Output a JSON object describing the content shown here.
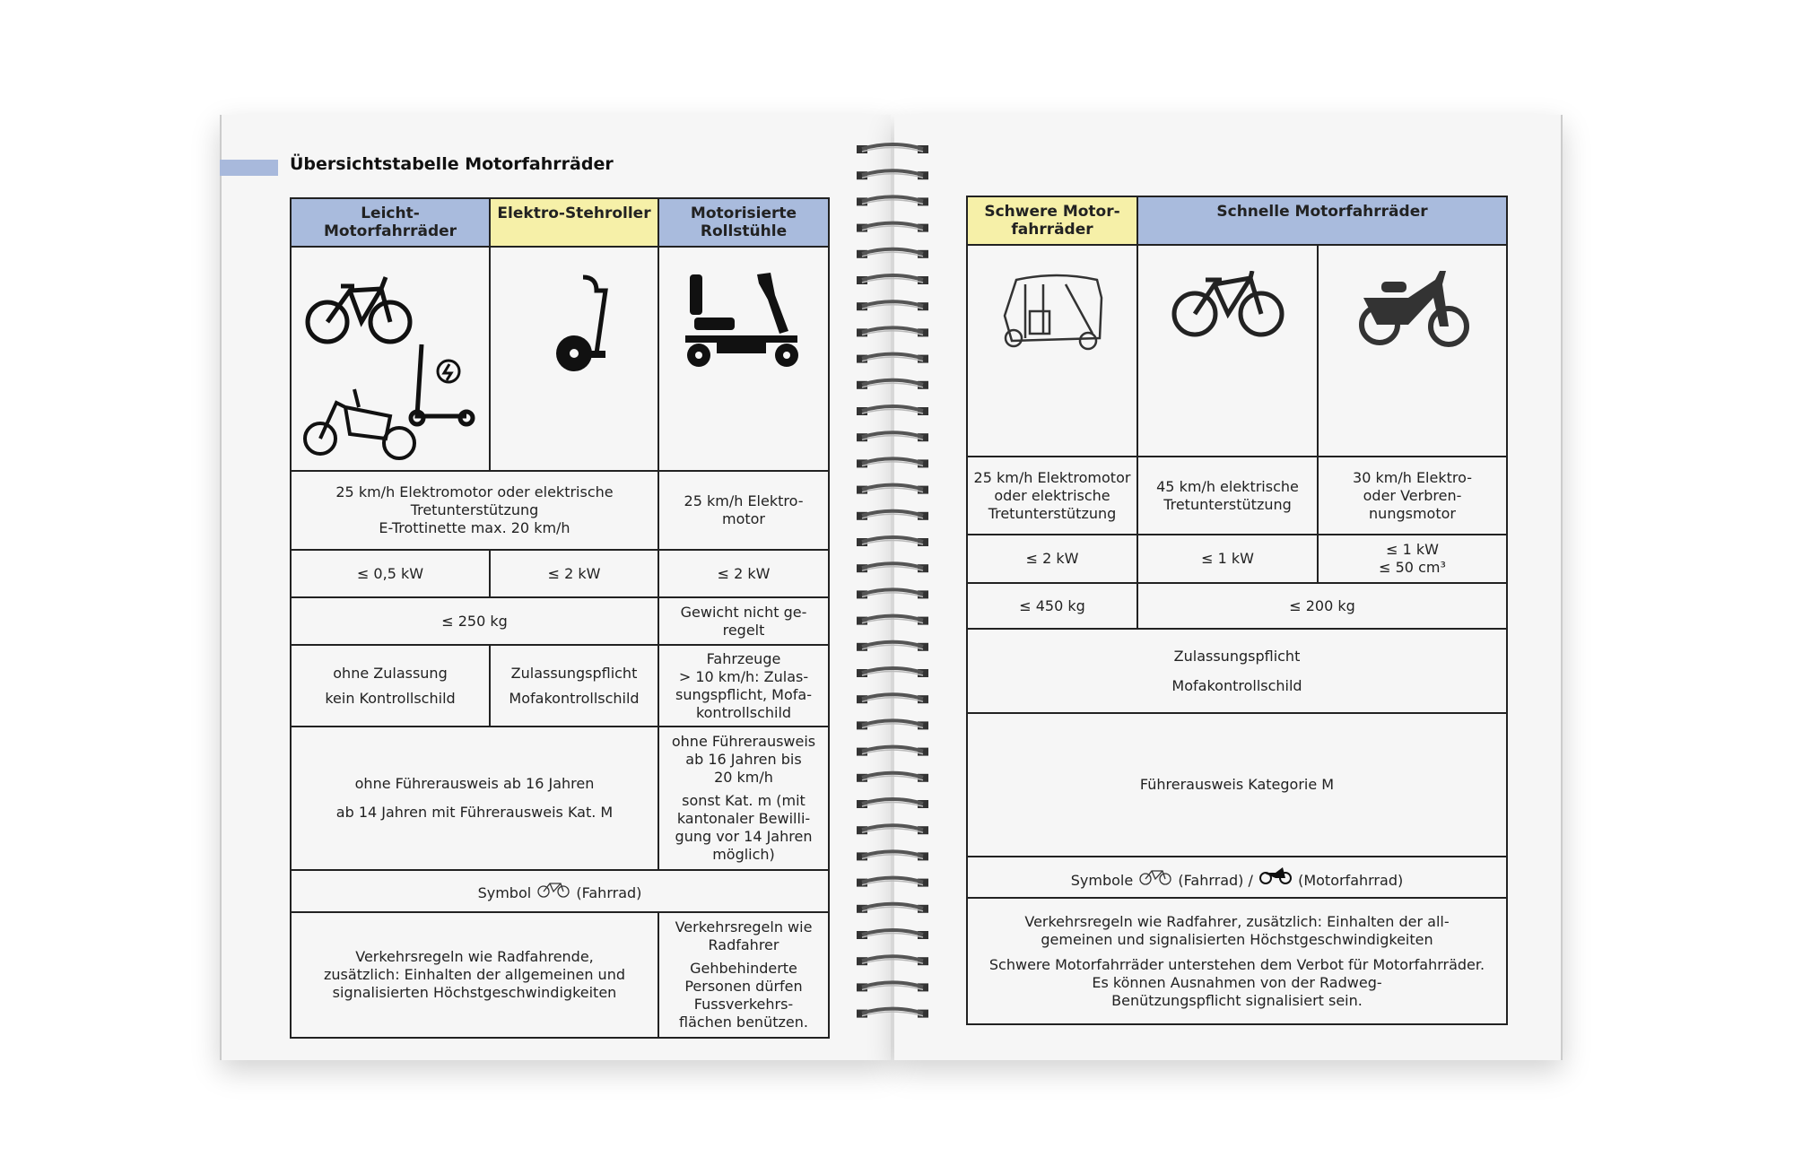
{
  "title": "Übersichtstabelle Motorfahrräder",
  "colors": {
    "header_blue": "#a9bbdd",
    "header_yellow": "#f6f0a8",
    "title_bar": "#a8b9dc"
  },
  "left": {
    "headers": [
      "Leicht-Motorfahrräder",
      "Elektro-Stehroller",
      "Motorisierte\nRollstühle"
    ],
    "icons": [
      "e-bike-icon",
      "e-scooter-icon",
      "cargo-bike-icon",
      "standing-scooter-icon",
      "mobility-scooter-icon"
    ],
    "speed": [
      "25 km/h Elektromotor oder elektrische\nTretunterstützung\nE-Trottinette max. 20 km/h",
      "25 km/h Elektro-\nmotor"
    ],
    "power": [
      "≤ 0,5 kW",
      "≤ 2 kW",
      "≤ 2 kW"
    ],
    "weight": [
      "≤ 250 kg",
      "Gewicht nicht ge-\nregelt"
    ],
    "registration": [
      [
        "ohne Zulassung",
        "kein Kontrollschild"
      ],
      [
        "Zulassungspflicht",
        "Mofakontrollschild"
      ],
      "Fahrzeuge\n> 10 km/h: Zulas-\nsungspflicht, Mofa-\nkontrollschild"
    ],
    "license": [
      [
        "ohne Führerausweis ab 16 Jahren",
        "ab 14 Jahren mit Führerausweis Kat. M"
      ],
      [
        "ohne Führerausweis\nab 16 Jahren bis\n20 km/h",
        "sonst Kat. m (mit\nkantonaler Bewilli-\ngung vor 14 Jahren\nmöglich)"
      ]
    ],
    "symbol": {
      "prefix": "Symbol",
      "suffix": "(Fahrrad)"
    },
    "rules": [
      "Verkehrsregeln wie Radfahrende,\nzusätzlich: Einhalten der allgemeinen und\nsignalisierten Höchstgeschwindigkeiten",
      [
        "Verkehrsregeln wie\nRadfahrer",
        "Gehbehinderte\nPersonen dürfen\nFussverkehrs-\nflächen benützen."
      ]
    ]
  },
  "right": {
    "headers": [
      "Schwere Motor-\nfahrräder",
      "Schnelle Motorfahrräder"
    ],
    "icons": [
      "tuk-tuk-icon",
      "s-pedelec-icon",
      "moped-icon"
    ],
    "speed": [
      "25 km/h Elektromotor\noder elektrische\nTretunterstützung",
      "45 km/h elektrische\nTretunterstützung",
      "30 km/h Elektro-\noder Verbren-\nnungsmotor"
    ],
    "power": [
      "≤ 2 kW",
      "≤ 1 kW",
      "≤ 1 kW\n≤ 50 cm³"
    ],
    "weight": [
      "≤ 450 kg",
      "≤ 200 kg"
    ],
    "registration": [
      "Zulassungspflicht",
      "Mofakontrollschild"
    ],
    "license": "Führerausweis Kategorie M",
    "symbol": {
      "prefix": "Symbole",
      "mid": "(Fahrrad) /",
      "suffix": "(Motorfahrrad)"
    },
    "rules": [
      "Verkehrsregeln wie Radfahrer, zusätzlich: Einhalten der all-\ngemeinen und signalisierten Höchstgeschwindigkeiten",
      "Schwere Motorfahrräder unterstehen dem Verbot für Motorfahrräder.\nEs können Ausnahmen von der Radweg-\nBenützungspflicht signalisiert sein."
    ]
  }
}
